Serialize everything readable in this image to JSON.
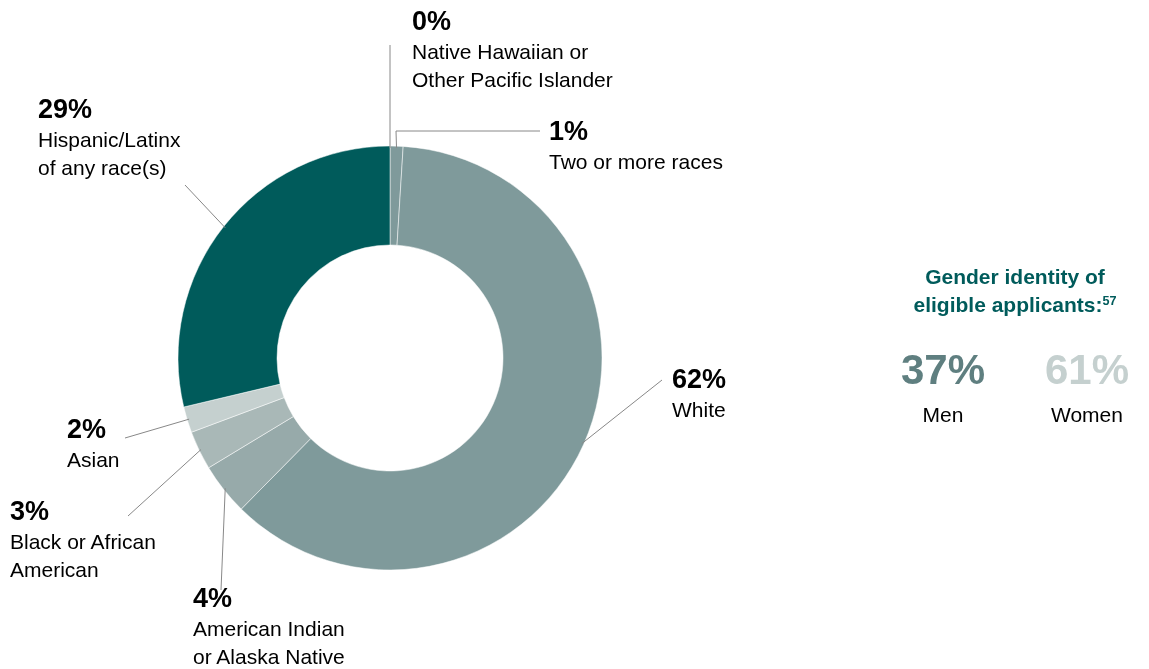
{
  "chart_data": [
    {
      "type": "donut",
      "categories": [
        "Native Hawaiian or Other Pacific Islander",
        "Two or more races",
        "White",
        "American Indian or Alaska Native",
        "Black or African American",
        "Asian",
        "Hispanic/Latinx of any race(s)"
      ],
      "values": [
        0,
        1,
        62,
        4,
        3,
        2,
        29
      ],
      "value_labels": [
        "0%",
        "1%",
        "62%",
        "4%",
        "3%",
        "2%",
        "29%"
      ],
      "colors": [
        "#7f9a9b",
        "#7f9a9b",
        "#7f9a9b",
        "#97aaaa",
        "#a9b8b7",
        "#c5d0cf",
        "#005b5b"
      ]
    },
    {
      "type": "other",
      "title": "Gender identity of eligible applicants:$^{57}$",
      "annotations": [
        "37%",
        "Men",
        "61%",
        "Women"
      ],
      "colors": [
        "#5f7f80",
        "#c5d0cf"
      ]
    }
  ]
}
